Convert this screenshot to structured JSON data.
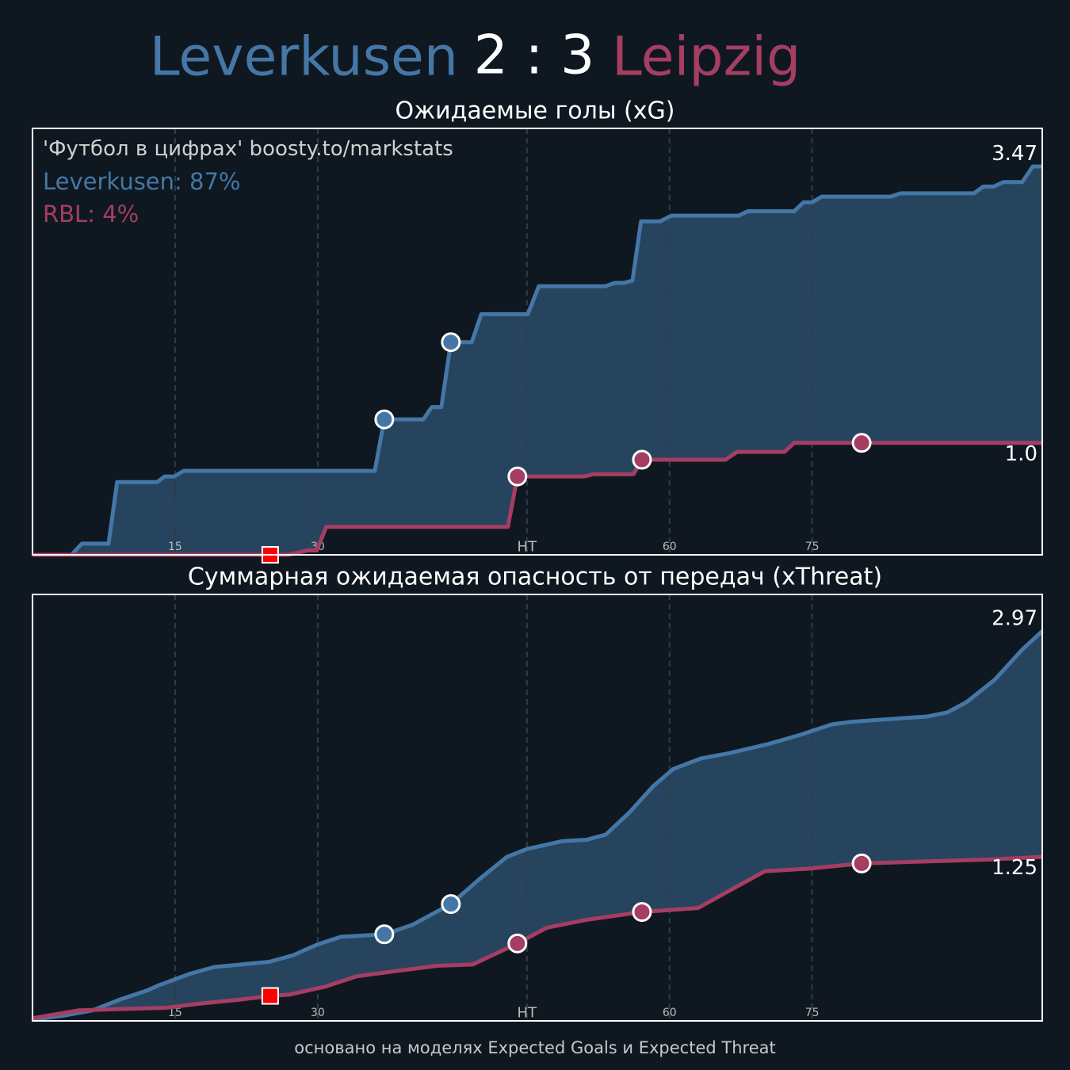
{
  "header": {
    "home": "Leverkusen",
    "score": "2 : 3",
    "away": "Leipzig"
  },
  "footer": "основано на моделях Expected Goals и Expected Threat",
  "chart_data": [
    {
      "type": "step",
      "title": "Ожидаемые голы (xG)",
      "annotations": [
        {
          "text": "'Футбол в цифрах' boosty.to/markstats",
          "color": "#d0d0d0"
        },
        {
          "text": "Leverkusen: 87%",
          "color": "#4577a6"
        },
        {
          "text": "RBL: 4%",
          "color": "#a63d63"
        }
      ],
      "xlim": [
        0,
        106.2
      ],
      "ylim": [
        0,
        3.81
      ],
      "xticks": [
        15,
        30,
        {
          "value": 52,
          "label": "HT"
        },
        {
          "value": 67,
          "label": "60"
        },
        {
          "value": 82,
          "label": "75"
        }
      ],
      "grid": true,
      "fill_between": "#27445e",
      "series": [
        {
          "name": "Leverkusen",
          "color": "#4577a6",
          "x": [
            0,
            4.1,
            5.2,
            8,
            8.9,
            13.1,
            13.9,
            14.9,
            15.9,
            36,
            37,
            41.1,
            42,
            43,
            44,
            46.2,
            47.2,
            52.1,
            53.25,
            60.25,
            61.25,
            62.2,
            63.1,
            64,
            66,
            67.2,
            74.25,
            75.25,
            80.1,
            81.1,
            82,
            83,
            90.25,
            91.3,
            99,
            100,
            101.1,
            102.1,
            104.1,
            105.2,
            106.2
          ],
          "values": [
            0,
            0,
            0.1,
            0.1,
            0.65,
            0.65,
            0.7,
            0.7,
            0.75,
            0.75,
            1.21,
            1.21,
            1.32,
            1.32,
            1.9,
            1.9,
            2.15,
            2.15,
            2.4,
            2.4,
            2.43,
            2.43,
            2.45,
            2.98,
            2.98,
            3.03,
            3.03,
            3.07,
            3.07,
            3.15,
            3.15,
            3.2,
            3.2,
            3.23,
            3.23,
            3.29,
            3.29,
            3.33,
            3.33,
            3.47,
            3.47
          ],
          "value_labels": [
            null,
            null,
            null,
            null,
            null,
            null,
            null,
            null,
            null,
            null,
            null,
            null,
            null,
            null,
            null,
            null,
            null,
            null,
            null,
            null,
            null,
            null,
            null,
            null,
            null,
            null,
            null,
            null,
            null,
            null,
            null,
            null,
            null,
            null,
            null,
            null,
            null,
            null,
            null,
            null,
            "3.47"
          ],
          "goal_x": [
            37,
            44
          ]
        },
        {
          "name": "RBL",
          "color": "#a63d63",
          "x": [
            0,
            26.9,
            29,
            29.9,
            30.9,
            50,
            51,
            58,
            59,
            63.2,
            64.1,
            72.9,
            74.1,
            79.1,
            80.1,
            106.2
          ],
          "values": [
            0,
            0,
            0.04,
            0.04,
            0.25,
            0.25,
            0.7,
            0.7,
            0.72,
            0.72,
            0.85,
            0.85,
            0.92,
            0.92,
            1,
            1
          ],
          "value_labels": [
            null,
            null,
            null,
            null,
            null,
            null,
            null,
            null,
            null,
            null,
            null,
            null,
            null,
            null,
            null,
            "1.0"
          ],
          "goal_x": [
            51,
            64.1,
            87.2
          ],
          "red_card_x": 25
        }
      ]
    },
    {
      "type": "line",
      "title": "Суммарная ожидаемая опасность от передач (xThreat)",
      "xlim": [
        0,
        106.2
      ],
      "ylim": [
        0,
        3.25
      ],
      "xticks": [
        15,
        30,
        {
          "value": 52,
          "label": "HT"
        },
        {
          "value": 67,
          "label": "60"
        },
        {
          "value": 82,
          "label": "75"
        }
      ],
      "grid": true,
      "fill_between": "#27445e",
      "series": [
        {
          "name": "Leverkusen",
          "color": "#4577a6",
          "x": [
            0,
            3.25,
            6.3,
            9.1,
            12,
            13.25,
            16.6,
            19.1,
            24.9,
            27.4,
            29.9,
            32.4,
            37,
            39.9,
            44,
            47,
            49.9,
            52,
            55.75,
            58.25,
            60.3,
            62.8,
            65.3,
            67.4,
            70.3,
            73.25,
            77.4,
            80.75,
            84.1,
            86.2,
            94.1,
            96.2,
            98.25,
            101.2,
            104.1,
            106.2
          ],
          "values": [
            0.01,
            0.04,
            0.08,
            0.16,
            0.23,
            0.27,
            0.36,
            0.41,
            0.45,
            0.5,
            0.58,
            0.64,
            0.66,
            0.73,
            0.89,
            1.08,
            1.25,
            1.31,
            1.37,
            1.38,
            1.42,
            1.59,
            1.79,
            1.92,
            2.0,
            2.04,
            2.11,
            2.18,
            2.26,
            2.28,
            2.32,
            2.35,
            2.43,
            2.6,
            2.83,
            2.97
          ],
          "value_labels": [
            null,
            null,
            null,
            null,
            null,
            null,
            null,
            null,
            null,
            null,
            null,
            null,
            null,
            null,
            null,
            null,
            null,
            null,
            null,
            null,
            null,
            null,
            null,
            null,
            null,
            null,
            null,
            null,
            null,
            null,
            null,
            null,
            null,
            null,
            null,
            "2.97"
          ],
          "goal_x": [
            37,
            44
          ]
        },
        {
          "name": "RBL",
          "color": "#a63d63",
          "x": [
            0,
            4.9,
            9.1,
            14.1,
            17.4,
            21.6,
            25,
            27,
            30.75,
            34.1,
            38.25,
            42.6,
            46.3,
            51,
            54.1,
            58.25,
            64.1,
            70,
            73.25,
            77,
            81.6,
            87.2,
            100.75,
            106.2
          ],
          "values": [
            0.02,
            0.08,
            0.09,
            0.1,
            0.13,
            0.16,
            0.19,
            0.2,
            0.26,
            0.34,
            0.38,
            0.42,
            0.43,
            0.59,
            0.71,
            0.77,
            0.83,
            0.86,
            0.99,
            1.14,
            1.16,
            1.2,
            1.23,
            1.25
          ],
          "value_labels": [
            null,
            null,
            null,
            null,
            null,
            null,
            null,
            null,
            null,
            null,
            null,
            null,
            null,
            null,
            null,
            null,
            null,
            null,
            null,
            null,
            null,
            null,
            null,
            "1.25"
          ],
          "goal_x": [
            51,
            64.1,
            87.2
          ],
          "red_card_x": 25
        }
      ]
    }
  ]
}
